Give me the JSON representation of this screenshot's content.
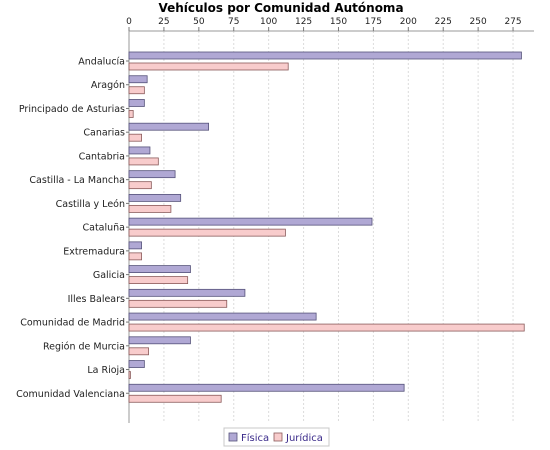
{
  "chart_data": {
    "type": "bar",
    "orientation": "horizontal",
    "title": "Vehículos por Comunidad Autónoma",
    "xlabel": "",
    "ylabel": "",
    "xlim": [
      0,
      290
    ],
    "x_ticks": [
      0,
      25,
      50,
      75,
      100,
      125,
      150,
      175,
      200,
      225,
      250,
      275
    ],
    "grid": true,
    "legend_position": "bottom",
    "categories": [
      "Andalucía",
      "Aragón",
      "Principado de Asturias",
      "Canarias",
      "Cantabria",
      "Castilla - La Mancha",
      "Castilla y León",
      "Cataluña",
      "Extremadura",
      "Galicia",
      "Illes Balears",
      "Comunidad de Madrid",
      "Región de Murcia",
      "La Rioja",
      "Comunidad Valenciana"
    ],
    "series": [
      {
        "name": "Física",
        "color": "#b0a8d4",
        "stroke": "#55527a",
        "values": [
          281,
          13,
          11,
          57,
          15,
          33,
          37,
          174,
          9,
          44,
          83,
          134,
          44,
          11,
          197
        ]
      },
      {
        "name": "Jurídica",
        "color": "#f8cccc",
        "stroke": "#8a5a5a",
        "values": [
          114,
          11,
          3,
          9,
          21,
          16,
          30,
          112,
          9,
          42,
          70,
          283,
          14,
          1,
          66
        ]
      }
    ]
  }
}
